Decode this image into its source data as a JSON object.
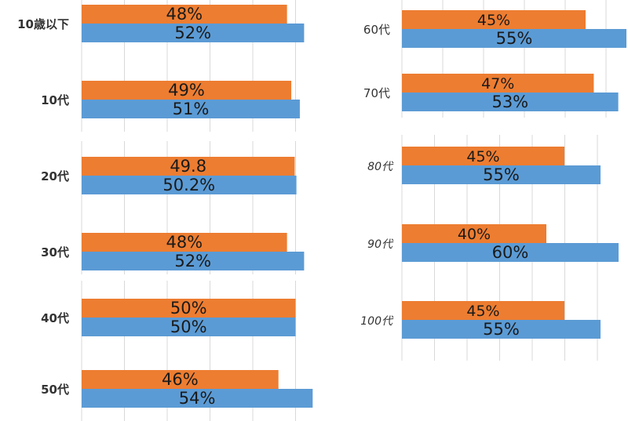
{
  "chart_data": {
    "type": "bar",
    "orientation": "horizontal",
    "series": [
      {
        "name": "series-1",
        "color": "#ED7D31"
      },
      {
        "name": "series-2",
        "color": "#5B9BD5"
      }
    ],
    "groups": [
      {
        "category": "10歳以下",
        "values": [
          48,
          52
        ],
        "labels": [
          "48%",
          "52%"
        ]
      },
      {
        "category": "10代",
        "values": [
          49,
          51
        ],
        "labels": [
          "49%",
          "51%"
        ]
      },
      {
        "category": "20代",
        "values": [
          49.8,
          50.2
        ],
        "labels": [
          "49.8",
          "50.2%"
        ]
      },
      {
        "category": "30代",
        "values": [
          48,
          52
        ],
        "labels": [
          "48%",
          "52%"
        ]
      },
      {
        "category": "40代",
        "values": [
          50,
          50
        ],
        "labels": [
          "50%",
          "50%"
        ]
      },
      {
        "category": "50代",
        "values": [
          46,
          54
        ],
        "labels": [
          "46%",
          "54%"
        ]
      },
      {
        "category": "60代",
        "values": [
          45,
          55
        ],
        "labels": [
          "45%",
          "55%"
        ]
      },
      {
        "category": "70代",
        "values": [
          47,
          53
        ],
        "labels": [
          "47%",
          "53%"
        ]
      },
      {
        "category": "80代",
        "values": [
          45,
          55
        ],
        "labels": [
          "45%",
          "55%"
        ]
      },
      {
        "category": "90代",
        "values": [
          40,
          60
        ],
        "labels": [
          "40%",
          "60%"
        ]
      },
      {
        "category": "100代",
        "values": [
          45,
          55
        ],
        "labels": [
          "45%",
          "55%"
        ]
      }
    ]
  }
}
